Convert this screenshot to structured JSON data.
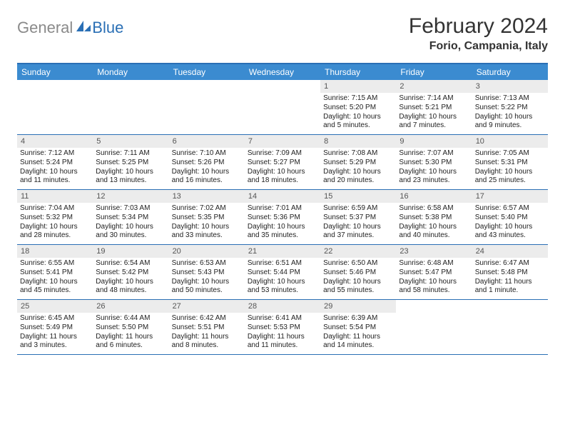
{
  "brand": {
    "part1": "General",
    "part2": "Blue"
  },
  "title": "February 2024",
  "location": "Forio, Campania, Italy",
  "colors": {
    "header_bar": "#3b8bd0",
    "rule": "#2a6fb5",
    "daynum_bg": "#ececec",
    "logo_gray": "#8a8a8a",
    "logo_blue": "#2a6fb5"
  },
  "dow": [
    "Sunday",
    "Monday",
    "Tuesday",
    "Wednesday",
    "Thursday",
    "Friday",
    "Saturday"
  ],
  "weeks": [
    [
      {
        "n": "",
        "sr": "",
        "ss": "",
        "dl": ""
      },
      {
        "n": "",
        "sr": "",
        "ss": "",
        "dl": ""
      },
      {
        "n": "",
        "sr": "",
        "ss": "",
        "dl": ""
      },
      {
        "n": "",
        "sr": "",
        "ss": "",
        "dl": ""
      },
      {
        "n": "1",
        "sr": "Sunrise: 7:15 AM",
        "ss": "Sunset: 5:20 PM",
        "dl": "Daylight: 10 hours and 5 minutes."
      },
      {
        "n": "2",
        "sr": "Sunrise: 7:14 AM",
        "ss": "Sunset: 5:21 PM",
        "dl": "Daylight: 10 hours and 7 minutes."
      },
      {
        "n": "3",
        "sr": "Sunrise: 7:13 AM",
        "ss": "Sunset: 5:22 PM",
        "dl": "Daylight: 10 hours and 9 minutes."
      }
    ],
    [
      {
        "n": "4",
        "sr": "Sunrise: 7:12 AM",
        "ss": "Sunset: 5:24 PM",
        "dl": "Daylight: 10 hours and 11 minutes."
      },
      {
        "n": "5",
        "sr": "Sunrise: 7:11 AM",
        "ss": "Sunset: 5:25 PM",
        "dl": "Daylight: 10 hours and 13 minutes."
      },
      {
        "n": "6",
        "sr": "Sunrise: 7:10 AM",
        "ss": "Sunset: 5:26 PM",
        "dl": "Daylight: 10 hours and 16 minutes."
      },
      {
        "n": "7",
        "sr": "Sunrise: 7:09 AM",
        "ss": "Sunset: 5:27 PM",
        "dl": "Daylight: 10 hours and 18 minutes."
      },
      {
        "n": "8",
        "sr": "Sunrise: 7:08 AM",
        "ss": "Sunset: 5:29 PM",
        "dl": "Daylight: 10 hours and 20 minutes."
      },
      {
        "n": "9",
        "sr": "Sunrise: 7:07 AM",
        "ss": "Sunset: 5:30 PM",
        "dl": "Daylight: 10 hours and 23 minutes."
      },
      {
        "n": "10",
        "sr": "Sunrise: 7:05 AM",
        "ss": "Sunset: 5:31 PM",
        "dl": "Daylight: 10 hours and 25 minutes."
      }
    ],
    [
      {
        "n": "11",
        "sr": "Sunrise: 7:04 AM",
        "ss": "Sunset: 5:32 PM",
        "dl": "Daylight: 10 hours and 28 minutes."
      },
      {
        "n": "12",
        "sr": "Sunrise: 7:03 AM",
        "ss": "Sunset: 5:34 PM",
        "dl": "Daylight: 10 hours and 30 minutes."
      },
      {
        "n": "13",
        "sr": "Sunrise: 7:02 AM",
        "ss": "Sunset: 5:35 PM",
        "dl": "Daylight: 10 hours and 33 minutes."
      },
      {
        "n": "14",
        "sr": "Sunrise: 7:01 AM",
        "ss": "Sunset: 5:36 PM",
        "dl": "Daylight: 10 hours and 35 minutes."
      },
      {
        "n": "15",
        "sr": "Sunrise: 6:59 AM",
        "ss": "Sunset: 5:37 PM",
        "dl": "Daylight: 10 hours and 37 minutes."
      },
      {
        "n": "16",
        "sr": "Sunrise: 6:58 AM",
        "ss": "Sunset: 5:38 PM",
        "dl": "Daylight: 10 hours and 40 minutes."
      },
      {
        "n": "17",
        "sr": "Sunrise: 6:57 AM",
        "ss": "Sunset: 5:40 PM",
        "dl": "Daylight: 10 hours and 43 minutes."
      }
    ],
    [
      {
        "n": "18",
        "sr": "Sunrise: 6:55 AM",
        "ss": "Sunset: 5:41 PM",
        "dl": "Daylight: 10 hours and 45 minutes."
      },
      {
        "n": "19",
        "sr": "Sunrise: 6:54 AM",
        "ss": "Sunset: 5:42 PM",
        "dl": "Daylight: 10 hours and 48 minutes."
      },
      {
        "n": "20",
        "sr": "Sunrise: 6:53 AM",
        "ss": "Sunset: 5:43 PM",
        "dl": "Daylight: 10 hours and 50 minutes."
      },
      {
        "n": "21",
        "sr": "Sunrise: 6:51 AM",
        "ss": "Sunset: 5:44 PM",
        "dl": "Daylight: 10 hours and 53 minutes."
      },
      {
        "n": "22",
        "sr": "Sunrise: 6:50 AM",
        "ss": "Sunset: 5:46 PM",
        "dl": "Daylight: 10 hours and 55 minutes."
      },
      {
        "n": "23",
        "sr": "Sunrise: 6:48 AM",
        "ss": "Sunset: 5:47 PM",
        "dl": "Daylight: 10 hours and 58 minutes."
      },
      {
        "n": "24",
        "sr": "Sunrise: 6:47 AM",
        "ss": "Sunset: 5:48 PM",
        "dl": "Daylight: 11 hours and 1 minute."
      }
    ],
    [
      {
        "n": "25",
        "sr": "Sunrise: 6:45 AM",
        "ss": "Sunset: 5:49 PM",
        "dl": "Daylight: 11 hours and 3 minutes."
      },
      {
        "n": "26",
        "sr": "Sunrise: 6:44 AM",
        "ss": "Sunset: 5:50 PM",
        "dl": "Daylight: 11 hours and 6 minutes."
      },
      {
        "n": "27",
        "sr": "Sunrise: 6:42 AM",
        "ss": "Sunset: 5:51 PM",
        "dl": "Daylight: 11 hours and 8 minutes."
      },
      {
        "n": "28",
        "sr": "Sunrise: 6:41 AM",
        "ss": "Sunset: 5:53 PM",
        "dl": "Daylight: 11 hours and 11 minutes."
      },
      {
        "n": "29",
        "sr": "Sunrise: 6:39 AM",
        "ss": "Sunset: 5:54 PM",
        "dl": "Daylight: 11 hours and 14 minutes."
      },
      {
        "n": "",
        "sr": "",
        "ss": "",
        "dl": ""
      },
      {
        "n": "",
        "sr": "",
        "ss": "",
        "dl": ""
      }
    ]
  ]
}
